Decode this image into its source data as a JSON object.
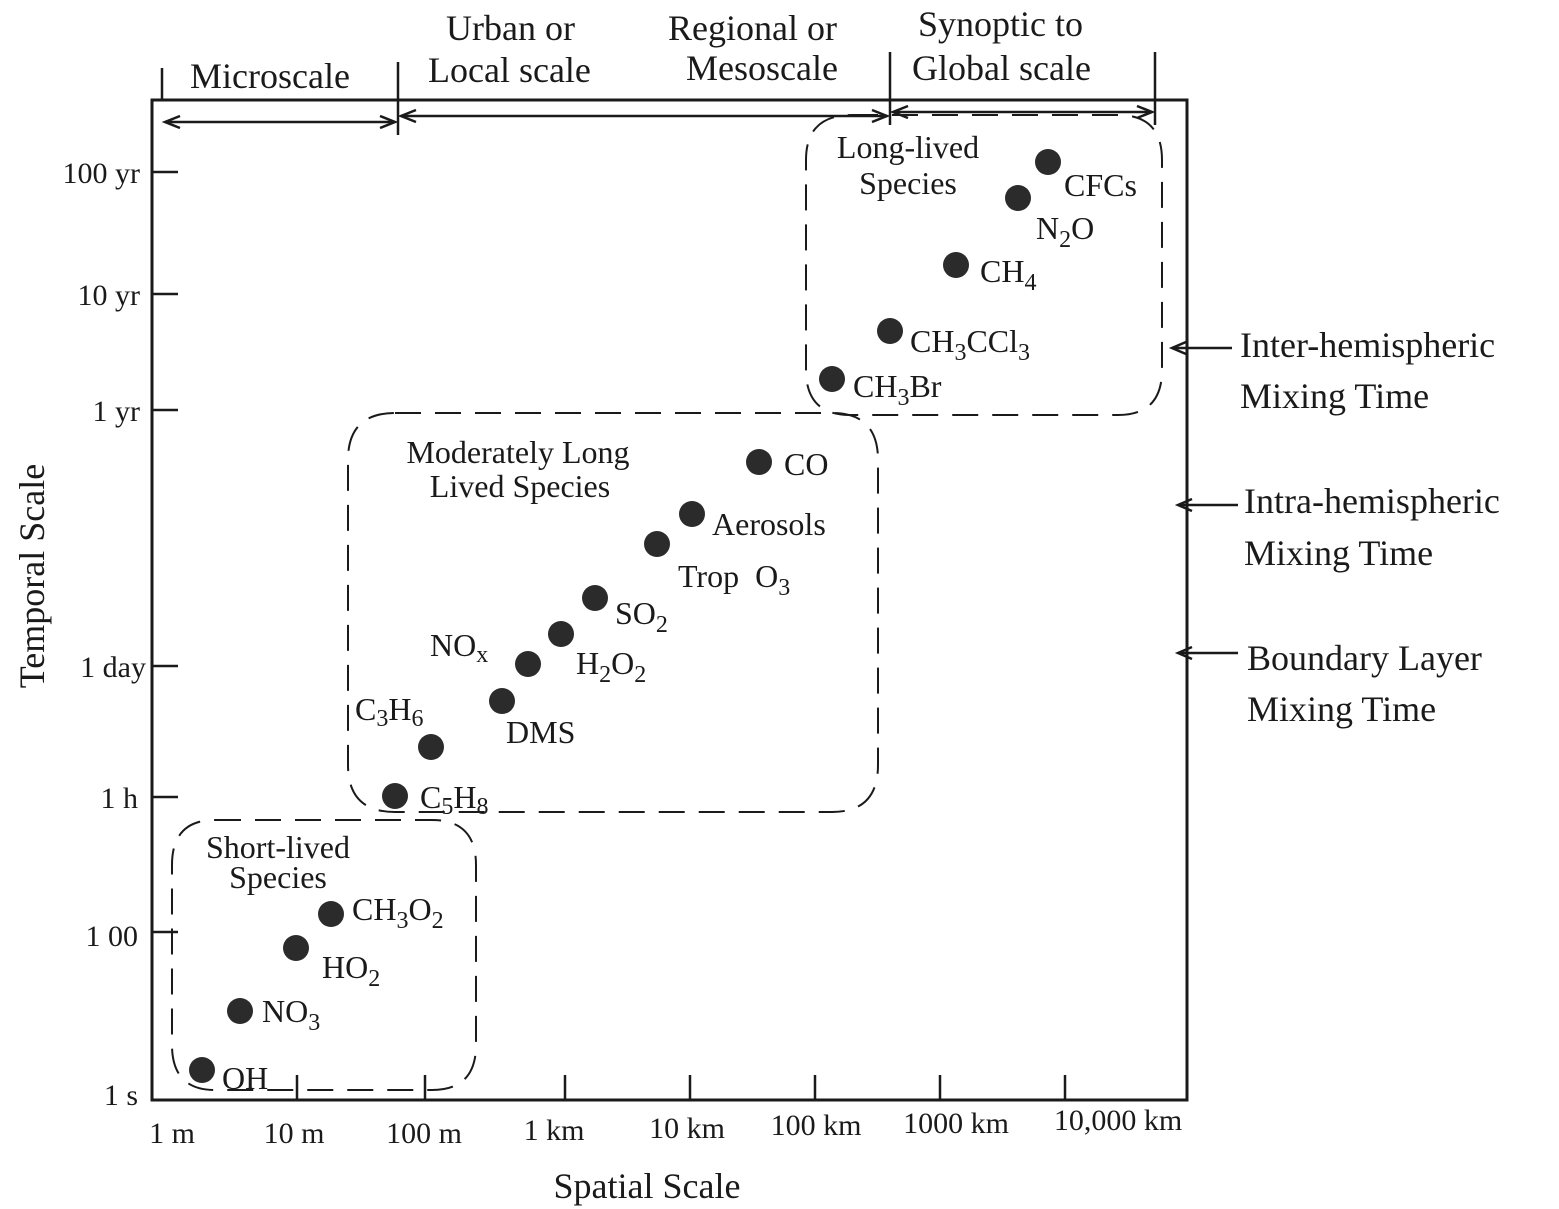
{
  "regions": {
    "micro": "Microscale",
    "urban_1": "Urban or",
    "urban_2": "Local scale",
    "regional_1": "Regional or",
    "regional_2": "Mesoscale",
    "synoptic_1": "Synoptic to",
    "synoptic_2": "Global scale"
  },
  "groups": {
    "long_1": "Long-lived",
    "long_2": "Species",
    "moderate_1": "Moderately Long",
    "moderate_2": "Lived Species",
    "short_1": "Short-lived",
    "short_2": "Species"
  },
  "mixing": {
    "inter_1": "Inter-hemispheric",
    "inter_2": "Mixing Time",
    "intra_1": "Intra-hemispheric",
    "intra_2": "Mixing Time",
    "boundary_1": "Boundary Layer",
    "boundary_2": "Mixing Time"
  },
  "axes": {
    "x_label": "Spatial Scale",
    "y_label": "Temporal Scale",
    "x_ticks": [
      "1 m",
      "10 m",
      "100 m",
      "1 km",
      "10 km",
      "100 km",
      "1000 km",
      "10,000 km"
    ],
    "y_ticks": [
      "1 s",
      "1 00",
      "1 h",
      "1 day",
      "1 yr",
      "10 yr",
      "100 yr"
    ]
  },
  "species": {
    "cfcs": "CFCs",
    "n2o_a": "N",
    "n2o_s": "2",
    "n2o_b": "O",
    "ch4_a": "CH",
    "ch4_s": "4",
    "ch3ccl3_a": "CH",
    "ch3ccl3_s1": "3",
    "ch3ccl3_b": "CCl",
    "ch3ccl3_s2": "3",
    "ch3br_a": "CH",
    "ch3br_s": "3",
    "ch3br_b": "Br",
    "co": "CO",
    "aerosols": "Aerosols",
    "tropo3_a": "Trop  O",
    "tropo3_s": "3",
    "so2_a": "SO",
    "so2_s": "2",
    "nox_a": "NO",
    "nox_s": "x",
    "h2o2_a": "H",
    "h2o2_s1": "2",
    "h2o2_b": "O",
    "h2o2_s2": "2",
    "dms": "DMS",
    "c3h6_a": "C",
    "c3h6_s1": "3",
    "c3h6_b": "H",
    "c3h6_s2": "6",
    "c5h8_a": "C",
    "c5h8_s1": "5",
    "c5h8_b": "H",
    "c5h8_s2": "8",
    "ch3o2_a": "CH",
    "ch3o2_s1": "3",
    "ch3o2_b": "O",
    "ch3o2_s2": "2",
    "ho2_a": "HO",
    "ho2_s": "2",
    "no3_a": "NO",
    "no3_s": "3",
    "oh": "OH"
  }
}
